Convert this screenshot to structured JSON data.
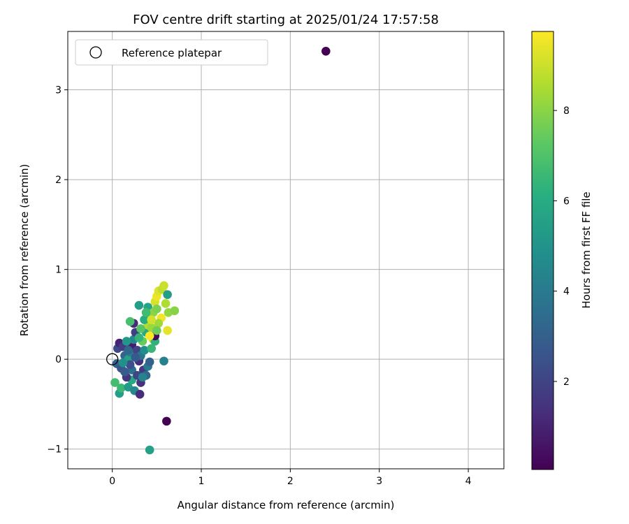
{
  "chart_data": {
    "type": "scatter",
    "title": "FOV centre drift starting at 2025/01/24 17:57:58",
    "xlabel": "Angular distance from reference (arcmin)",
    "ylabel": "Rotation from reference (arcmin)",
    "xlim": [
      -0.5,
      4.4
    ],
    "ylim": [
      -1.22,
      3.65
    ],
    "xticks": [
      0,
      1,
      2,
      3,
      4
    ],
    "xtick_labels": [
      "0",
      "1",
      "2",
      "3",
      "4"
    ],
    "yticks": [
      -1,
      0,
      1,
      2,
      3
    ],
    "ytick_labels": [
      "−1",
      "0",
      "1",
      "2",
      "3"
    ],
    "grid": true,
    "legend": {
      "location": "top-left",
      "entries": [
        {
          "label": "Reference platepar",
          "marker": "open-circle"
        }
      ]
    },
    "reference_point": {
      "x": 0,
      "y": 0
    },
    "colorbar": {
      "label": "Hours from first FF file",
      "colormap": "viridis",
      "range": [
        0.05,
        9.75
      ],
      "ticks": [
        2,
        4,
        6,
        8
      ],
      "tick_labels": [
        "2",
        "4",
        "6",
        "8"
      ]
    },
    "points": [
      {
        "x": 2.4,
        "y": 3.43,
        "c": 0.05
      },
      {
        "x": 0.61,
        "y": -0.69,
        "c": 0.05
      },
      {
        "x": 0.42,
        "y": -1.01,
        "c": 5.6
      },
      {
        "x": 0.03,
        "y": -0.26,
        "c": 6.8
      },
      {
        "x": 0.08,
        "y": -0.38,
        "c": 5.5
      },
      {
        "x": 0.1,
        "y": -0.32,
        "c": 6.6
      },
      {
        "x": 0.18,
        "y": -0.31,
        "c": 5.3
      },
      {
        "x": 0.25,
        "y": -0.35,
        "c": 4.6
      },
      {
        "x": 0.31,
        "y": -0.39,
        "c": 1.3
      },
      {
        "x": 0.32,
        "y": -0.26,
        "c": 1.5
      },
      {
        "x": 0.22,
        "y": -0.23,
        "c": 6.0
      },
      {
        "x": 0.16,
        "y": -0.2,
        "c": 1.6
      },
      {
        "x": 0.05,
        "y": -0.05,
        "c": 3.0
      },
      {
        "x": 0.06,
        "y": 0.12,
        "c": 2.2
      },
      {
        "x": 0.08,
        "y": 0.18,
        "c": 1.0
      },
      {
        "x": 0.12,
        "y": 0.14,
        "c": 1.8
      },
      {
        "x": 0.14,
        "y": 0.04,
        "c": 3.2
      },
      {
        "x": 0.1,
        "y": -0.1,
        "c": 2.5
      },
      {
        "x": 0.18,
        "y": 0.0,
        "c": 5.6
      },
      {
        "x": 0.2,
        "y": 0.08,
        "c": 4.2
      },
      {
        "x": 0.22,
        "y": 0.16,
        "c": 0.8
      },
      {
        "x": 0.24,
        "y": 0.22,
        "c": 4.5
      },
      {
        "x": 0.26,
        "y": 0.3,
        "c": 1.9
      },
      {
        "x": 0.24,
        "y": 0.4,
        "c": 1.2
      },
      {
        "x": 0.2,
        "y": 0.42,
        "c": 6.9
      },
      {
        "x": 0.3,
        "y": 0.6,
        "c": 5.5
      },
      {
        "x": 0.28,
        "y": 0.1,
        "c": 2.0
      },
      {
        "x": 0.3,
        "y": -0.02,
        "c": 1.4
      },
      {
        "x": 0.32,
        "y": 0.04,
        "c": 3.8
      },
      {
        "x": 0.35,
        "y": -0.12,
        "c": 1.7
      },
      {
        "x": 0.38,
        "y": -0.18,
        "c": 3.4
      },
      {
        "x": 0.4,
        "y": -0.08,
        "c": 4.0
      },
      {
        "x": 0.42,
        "y": -0.03,
        "c": 3.1
      },
      {
        "x": 0.36,
        "y": 0.1,
        "c": 4.8
      },
      {
        "x": 0.34,
        "y": 0.2,
        "c": 7.5
      },
      {
        "x": 0.38,
        "y": 0.3,
        "c": 5.9
      },
      {
        "x": 0.4,
        "y": 0.38,
        "c": 8.7
      },
      {
        "x": 0.42,
        "y": 0.46,
        "c": 7.0
      },
      {
        "x": 0.44,
        "y": 0.35,
        "c": 8.3
      },
      {
        "x": 0.46,
        "y": 0.22,
        "c": 8.9
      },
      {
        "x": 0.48,
        "y": 0.2,
        "c": 6.3
      },
      {
        "x": 0.4,
        "y": 0.58,
        "c": 5.7
      },
      {
        "x": 0.46,
        "y": 0.52,
        "c": 8.1
      },
      {
        "x": 0.48,
        "y": 0.64,
        "c": 9.2
      },
      {
        "x": 0.5,
        "y": 0.7,
        "c": 9.5
      },
      {
        "x": 0.52,
        "y": 0.76,
        "c": 9.3
      },
      {
        "x": 0.56,
        "y": 0.78,
        "c": 8.8
      },
      {
        "x": 0.58,
        "y": 0.82,
        "c": 9.0
      },
      {
        "x": 0.62,
        "y": 0.72,
        "c": 5.4
      },
      {
        "x": 0.6,
        "y": 0.62,
        "c": 8.6
      },
      {
        "x": 0.63,
        "y": 0.52,
        "c": 8.2
      },
      {
        "x": 0.7,
        "y": 0.54,
        "c": 8.0
      },
      {
        "x": 0.55,
        "y": 0.46,
        "c": 9.6
      },
      {
        "x": 0.52,
        "y": 0.4,
        "c": 8.4
      },
      {
        "x": 0.62,
        "y": 0.32,
        "c": 9.4
      },
      {
        "x": 0.58,
        "y": -0.02,
        "c": 4.3
      },
      {
        "x": 0.48,
        "y": 0.26,
        "c": 0.3
      },
      {
        "x": 0.44,
        "y": 0.12,
        "c": 6.5
      },
      {
        "x": 0.26,
        "y": 0.02,
        "c": 2.8
      },
      {
        "x": 0.22,
        "y": -0.12,
        "c": 3.6
      },
      {
        "x": 0.14,
        "y": -0.14,
        "c": 2.9
      },
      {
        "x": 0.2,
        "y": -0.06,
        "c": 2.4
      },
      {
        "x": 0.28,
        "y": -0.18,
        "c": 2.1
      },
      {
        "x": 0.34,
        "y": -0.2,
        "c": 4.4
      },
      {
        "x": 0.16,
        "y": 0.2,
        "c": 5.2
      },
      {
        "x": 0.12,
        "y": -0.04,
        "c": 4.9
      },
      {
        "x": 0.36,
        "y": 0.44,
        "c": 6.1
      },
      {
        "x": 0.44,
        "y": 0.44,
        "c": 9.1
      },
      {
        "x": 0.5,
        "y": 0.56,
        "c": 7.8
      },
      {
        "x": 0.32,
        "y": 0.34,
        "c": 7.2
      },
      {
        "x": 0.38,
        "y": 0.52,
        "c": 6.7
      },
      {
        "x": 0.5,
        "y": 0.32,
        "c": 7.6
      },
      {
        "x": 0.42,
        "y": 0.26,
        "c": 9.7
      },
      {
        "x": 0.18,
        "y": 0.1,
        "c": 3.3
      },
      {
        "x": 0.3,
        "y": 0.24,
        "c": 6.4
      }
    ]
  }
}
